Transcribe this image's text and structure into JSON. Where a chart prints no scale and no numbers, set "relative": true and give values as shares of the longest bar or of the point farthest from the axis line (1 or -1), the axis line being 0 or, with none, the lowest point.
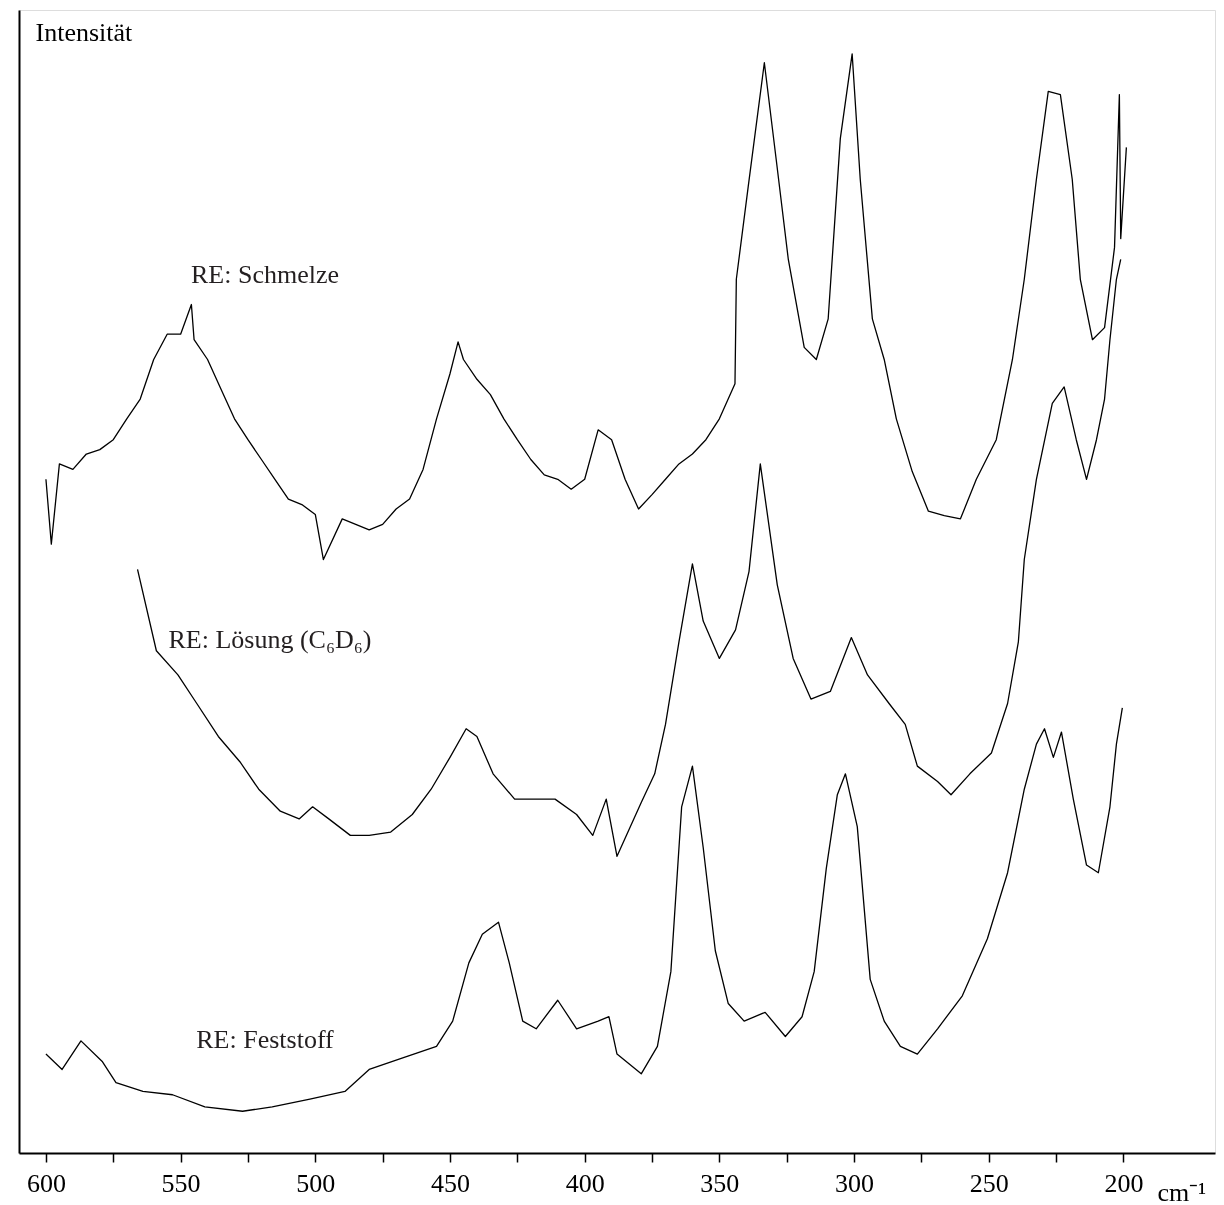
{
  "chart_data": {
    "type": "line",
    "relative": true,
    "ylabel": "Intensität",
    "xlabel": "cm⁻¹",
    "xlim": [
      610,
      166
    ],
    "xticks": [
      600,
      {
        "value": 575,
        "label": null
      },
      550,
      {
        "value": 525,
        "label": null
      },
      500,
      {
        "value": 475,
        "label": null
      },
      450,
      {
        "value": 425,
        "label": null
      },
      400,
      {
        "value": 375,
        "label": null
      },
      350,
      {
        "value": 325,
        "label": null
      },
      300,
      {
        "value": 275,
        "label": null
      },
      250,
      {
        "value": 225,
        "label": null
      },
      200
    ],
    "grid": false,
    "legend": false,
    "marker": "none",
    "line_style": "solid",
    "tick_labels": "x",
    "series": [
      {
        "name": "RE: Schmelze",
        "color": "#000000",
        "x": [
          600,
          598,
          595,
          590,
          585,
          580,
          575,
          570,
          565,
          560,
          555,
          550,
          546,
          545,
          540,
          535,
          530,
          525,
          520,
          515,
          510,
          505,
          500,
          497,
          490,
          485,
          480,
          475,
          470,
          465,
          460,
          455,
          450,
          447,
          445,
          440,
          435,
          430,
          425,
          420,
          415,
          410,
          405,
          400,
          395,
          390,
          385,
          380,
          375,
          370,
          365,
          360,
          355,
          350,
          344.2,
          343.7,
          339.3,
          333.3,
          328.9,
          324.4,
          318.5,
          314,
          309.6,
          305.1,
          300.7,
          297.7,
          293.2,
          288.8,
          284.3,
          278.4,
          272.4,
          266.5,
          260.5,
          254.6,
          247.2,
          241.2,
          236.8,
          232.3,
          227.9,
          223.4,
          219,
          216,
          211.5,
          207,
          203.3,
          201.5,
          201,
          198.9
        ],
        "values": [
          0.613,
          0.554,
          0.627,
          0.622,
          0.636,
          0.64,
          0.649,
          0.668,
          0.686,
          0.722,
          0.745,
          0.745,
          0.772,
          0.74,
          0.722,
          0.695,
          0.668,
          0.649,
          0.631,
          0.613,
          0.595,
          0.59,
          0.581,
          0.54,
          0.577,
          0.572,
          0.567,
          0.572,
          0.586,
          0.595,
          0.622,
          0.668,
          0.709,
          0.738,
          0.722,
          0.704,
          0.69,
          0.668,
          0.649,
          0.631,
          0.617,
          0.613,
          0.604,
          0.613,
          0.658,
          0.649,
          0.613,
          0.586,
          0.599,
          0.613,
          0.627,
          0.636,
          0.649,
          0.668,
          0.7,
          0.795,
          0.879,
          0.992,
          0.904,
          0.813,
          0.733,
          0.722,
          0.759,
          0.923,
          1,
          0.886,
          0.759,
          0.722,
          0.668,
          0.62,
          0.584,
          0.58,
          0.577,
          0.613,
          0.649,
          0.722,
          0.795,
          0.886,
          0.966,
          0.963,
          0.886,
          0.795,
          0.74,
          0.751,
          0.824,
          0.963,
          0.832,
          0.915
        ]
      },
      {
        "name": "RE: Lösung (C₆D₆)",
        "color": "#000000",
        "x": [
          566,
          559,
          551,
          544,
          536,
          528,
          521,
          513,
          506,
          501,
          495,
          487,
          480,
          472,
          464,
          457,
          450,
          444,
          440,
          434,
          426,
          418,
          411,
          403,
          397,
          392,
          388,
          379,
          374,
          370,
          365,
          360,
          356,
          350,
          344,
          339,
          334.8,
          328.5,
          322.6,
          316,
          308.8,
          301,
          295,
          287,
          281,
          276.5,
          269,
          264,
          257,
          249,
          243,
          239,
          236.8,
          232.3,
          226.4,
          222,
          217.5,
          213.7,
          210,
          207,
          205,
          202.6,
          201
        ],
        "values": [
          0.531,
          0.457,
          0.435,
          0.409,
          0.379,
          0.356,
          0.331,
          0.311,
          0.304,
          0.315,
          0.304,
          0.289,
          0.289,
          0.292,
          0.308,
          0.331,
          0.36,
          0.386,
          0.379,
          0.345,
          0.322,
          0.322,
          0.322,
          0.308,
          0.289,
          0.322,
          0.27,
          0.319,
          0.345,
          0.39,
          0.465,
          0.536,
          0.484,
          0.45,
          0.476,
          0.529,
          0.627,
          0.517,
          0.45,
          0.413,
          0.42,
          0.469,
          0.435,
          0.409,
          0.39,
          0.352,
          0.338,
          0.326,
          0.345,
          0.364,
          0.409,
          0.465,
          0.54,
          0.613,
          0.682,
          0.697,
          0.649,
          0.613,
          0.649,
          0.686,
          0.74,
          0.795,
          0.813
        ]
      },
      {
        "name": "RE: Feststoff",
        "color": "#000000",
        "x": [
          600,
          594,
          587,
          579,
          574,
          564,
          553,
          541,
          527,
          516,
          502,
          489,
          480,
          467,
          455,
          449,
          443,
          438,
          432,
          428,
          423,
          418,
          410,
          403,
          395,
          391,
          388,
          379,
          373,
          368,
          364,
          360,
          356,
          351.5,
          346.7,
          340.8,
          333,
          325.5,
          319.3,
          314.8,
          310.3,
          306.2,
          303.2,
          298.8,
          294,
          288.8,
          282.8,
          276.5,
          269,
          259.8,
          250.5,
          243,
          236.8,
          232.3,
          229.3,
          226,
          223,
          218.6,
          213.7,
          209.3,
          205,
          202.6,
          200.4
        ],
        "values": [
          0.09,
          0.076,
          0.102,
          0.083,
          0.064,
          0.056,
          0.053,
          0.042,
          0.038,
          0.042,
          0.049,
          0.056,
          0.076,
          0.087,
          0.097,
          0.12,
          0.173,
          0.199,
          0.21,
          0.173,
          0.12,
          0.113,
          0.139,
          0.113,
          0.12,
          0.124,
          0.09,
          0.072,
          0.097,
          0.165,
          0.315,
          0.352,
          0.278,
          0.184,
          0.136,
          0.12,
          0.128,
          0.106,
          0.124,
          0.165,
          0.259,
          0.326,
          0.345,
          0.297,
          0.158,
          0.12,
          0.097,
          0.09,
          0.113,
          0.143,
          0.195,
          0.255,
          0.331,
          0.372,
          0.386,
          0.36,
          0.383,
          0.322,
          0.262,
          0.255,
          0.315,
          0.372,
          0.405
        ]
      }
    ]
  }
}
